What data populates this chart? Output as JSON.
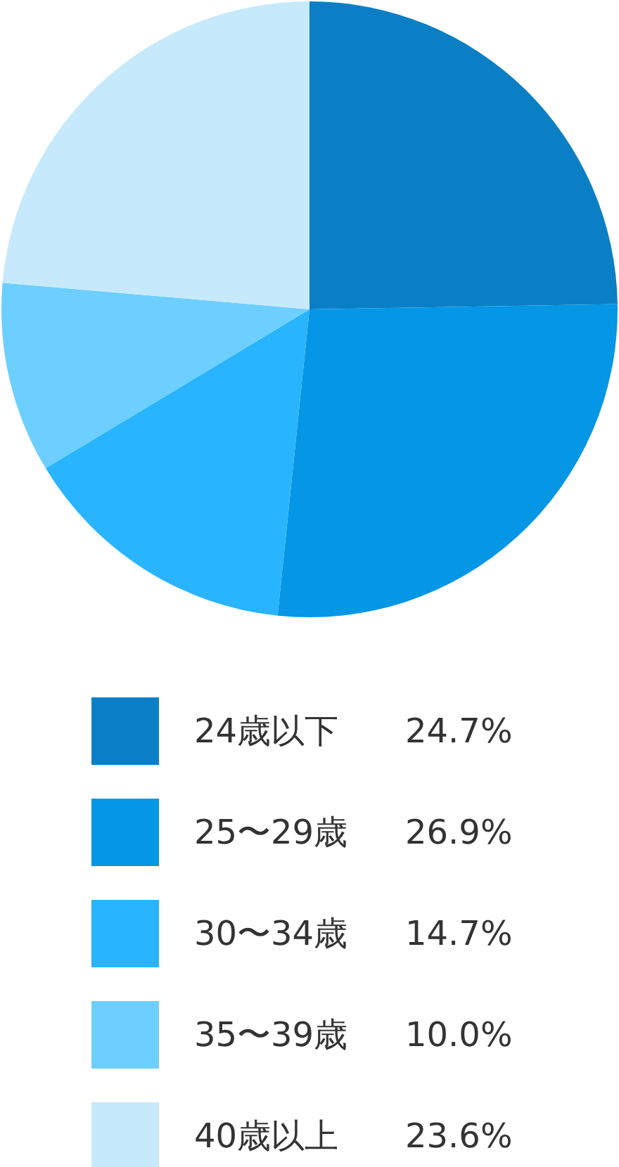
{
  "chart_data": {
    "type": "pie",
    "categories": [
      "24歳以下",
      "25〜29歳",
      "30〜34歳",
      "35〜39歳",
      "40歳以上"
    ],
    "values": [
      24.7,
      26.9,
      14.7,
      10.0,
      23.6
    ],
    "value_labels": [
      "24.7%",
      "26.9%",
      "14.7%",
      "10.0%",
      "23.6%"
    ],
    "colors": [
      "#0a7fc6",
      "#0596e6",
      "#29b4ff",
      "#6dcfff",
      "#c7e9fc"
    ],
    "legend": "bottom"
  }
}
